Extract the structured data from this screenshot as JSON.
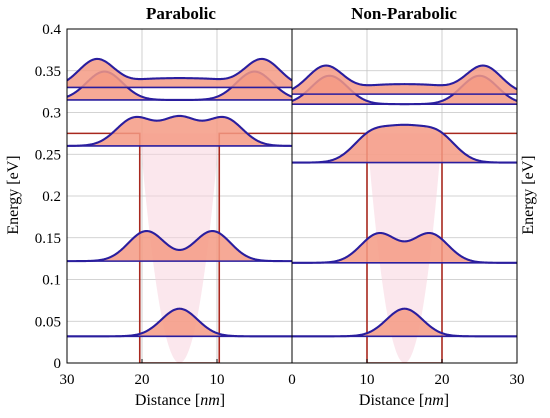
{
  "chart_data": [
    {
      "type": "line",
      "title": "Parabolic",
      "xlabel_text": "Distance",
      "xlabel_unit": "nm",
      "ylabel_text": "Energy",
      "ylabel_unit": "eV",
      "xlim": [
        30,
        0
      ],
      "ylim": [
        0,
        0.4
      ],
      "xticks": [
        "30",
        "20",
        "10"
      ],
      "yticks": [
        "0",
        "0.05",
        "0.1",
        "0.15",
        "0.2",
        "0.25",
        "0.3",
        "0.35",
        "0.4"
      ],
      "grid": true,
      "potential": {
        "shape": "parabolic",
        "vertex": [
          15,
          0
        ],
        "x": [
          9.7,
          20.3
        ],
        "top_energy": 0.275,
        "flat_energy_outside": 0.275
      },
      "series": [
        {
          "energy": 0.032,
          "peaks": [
            {
              "x": 15,
              "height": 0.033
            }
          ]
        },
        {
          "energy": 0.122,
          "peaks": [
            {
              "x": 19.4,
              "height": 0.036
            },
            {
              "x": 10.6,
              "height": 0.036
            }
          ]
        },
        {
          "energy": 0.26,
          "peaks": [
            {
              "x": 21,
              "height": 0.033
            },
            {
              "x": 15,
              "height": 0.033
            },
            {
              "x": 9,
              "height": 0.033
            }
          ]
        },
        {
          "energy": 0.315,
          "peaks": [
            {
              "x": 25,
              "height": 0.034
            },
            {
              "x": 5,
              "height": 0.034
            }
          ]
        },
        {
          "energy": 0.33,
          "peaks": [
            {
              "x": 26,
              "height": 0.034
            },
            {
              "x": 19.3,
              "height": 0.008
            },
            {
              "x": 15,
              "height": 0.008
            },
            {
              "x": 10.7,
              "height": 0.008
            },
            {
              "x": 4,
              "height": 0.034
            }
          ]
        }
      ]
    },
    {
      "type": "line",
      "title": "Non-Parabolic",
      "xlabel_text": "Distance",
      "xlabel_unit": "nm",
      "ylabel_text": "Energy",
      "ylabel_unit": "eV",
      "xlim": [
        0,
        30
      ],
      "ylim": [
        0,
        0.4
      ],
      "xticks": [
        "0",
        "10",
        "20",
        "30"
      ],
      "grid": true,
      "potential": {
        "shape": "parabolic",
        "vertex": [
          15,
          0
        ],
        "x": [
          10,
          20
        ],
        "top_energy": 0.275,
        "flat_energy_outside": 0.275
      },
      "series": [
        {
          "energy": 0.032,
          "peaks": [
            {
              "x": 15,
              "height": 0.033
            }
          ]
        },
        {
          "energy": 0.12,
          "peaks": [
            {
              "x": 11.6,
              "height": 0.035
            },
            {
              "x": 18.4,
              "height": 0.035
            }
          ]
        },
        {
          "energy": 0.24,
          "peaks": [
            {
              "x": 10.6,
              "height": 0.033
            },
            {
              "x": 15,
              "height": 0.033
            },
            {
              "x": 19.4,
              "height": 0.033
            }
          ]
        },
        {
          "energy": 0.31,
          "peaks": [
            {
              "x": 5,
              "height": 0.034
            },
            {
              "x": 25,
              "height": 0.034
            }
          ]
        },
        {
          "energy": 0.322,
          "peaks": [
            {
              "x": 4.5,
              "height": 0.034
            },
            {
              "x": 11,
              "height": 0.008
            },
            {
              "x": 15,
              "height": 0.008
            },
            {
              "x": 19,
              "height": 0.008
            },
            {
              "x": 25.5,
              "height": 0.034
            }
          ]
        }
      ]
    }
  ],
  "colors": {
    "wave_line": "#2a1e9e",
    "wave_fill": "#f49a84",
    "potential": "#a8281e",
    "grid": "#c4c4c4",
    "axes": "#000000"
  }
}
